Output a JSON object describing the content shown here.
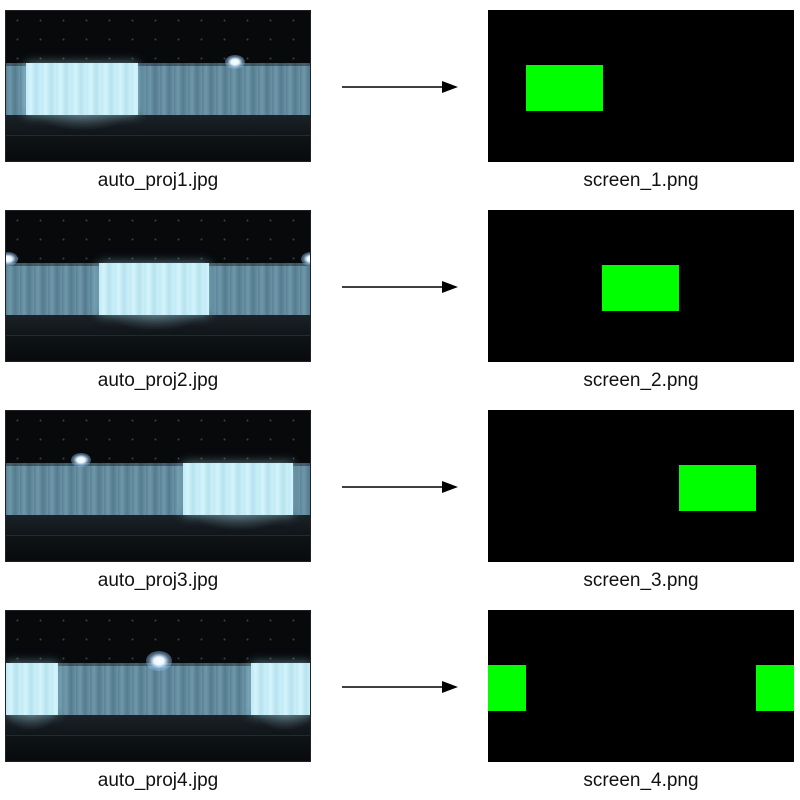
{
  "rows": [
    {
      "photo_label": "auto_proj1.jpg",
      "screen_label": "screen_1.png"
    },
    {
      "photo_label": "auto_proj2.jpg",
      "screen_label": "screen_2.png"
    },
    {
      "photo_label": "auto_proj3.jpg",
      "screen_label": "screen_3.png"
    },
    {
      "photo_label": "auto_proj4.jpg",
      "screen_label": "screen_4.png"
    }
  ],
  "colors": {
    "marker": "#00ff00",
    "screen_background": "#000000",
    "projected_area": "#cdf0f9",
    "curtain": "#6a92a4",
    "arrow": "#000000"
  }
}
